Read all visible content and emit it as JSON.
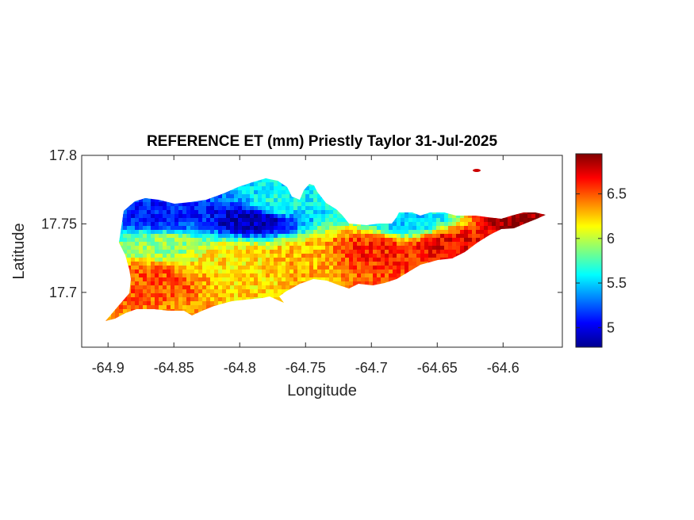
{
  "chart_data": {
    "type": "heatmap",
    "title": "REFERENCE ET (mm) Priestly Taylor 31-Jul-2025",
    "xlabel": "Longitude",
    "ylabel": "Latitude",
    "xlim": [
      -64.92,
      -64.555
    ],
    "ylim": [
      17.66,
      17.8
    ],
    "xticks": [
      -64.9,
      -64.85,
      -64.8,
      -64.75,
      -64.7,
      -64.65,
      -64.6
    ],
    "xtick_labels": [
      "-64.9",
      "-64.85",
      "-64.8",
      "-64.75",
      "-64.7",
      "-64.65",
      "-64.6"
    ],
    "yticks": [
      17.7,
      17.75,
      17.8
    ],
    "ytick_labels": [
      "17.7",
      "17.75",
      "17.8"
    ],
    "colormap": "jet",
    "colorbar": {
      "range": [
        4.78,
        6.95
      ],
      "ticks": [
        5,
        5.5,
        6,
        6.5
      ],
      "tick_labels": [
        "5",
        "5.5",
        "6",
        "6.5"
      ],
      "placement": "right"
    },
    "grid": false,
    "field": {
      "description_points": [
        {
          "lon": -64.86,
          "lat": 17.755,
          "value": 5.1
        },
        {
          "lon": -64.79,
          "lat": 17.753,
          "value": 4.9
        },
        {
          "lon": -64.77,
          "lat": 17.765,
          "value": 5.6
        },
        {
          "lon": -64.67,
          "lat": 17.752,
          "value": 5.5
        },
        {
          "lon": -64.86,
          "lat": 17.735,
          "value": 5.9
        },
        {
          "lon": -64.8,
          "lat": 17.725,
          "value": 6.2
        },
        {
          "lon": -64.75,
          "lat": 17.725,
          "value": 6.3
        },
        {
          "lon": -64.87,
          "lat": 17.71,
          "value": 6.5
        },
        {
          "lon": -64.7,
          "lat": 17.73,
          "value": 6.6
        },
        {
          "lon": -64.64,
          "lat": 17.735,
          "value": 6.7
        },
        {
          "lon": -64.58,
          "lat": 17.752,
          "value": 6.9
        },
        {
          "lon": -64.625,
          "lat": 17.787,
          "value": 6.8
        }
      ]
    }
  }
}
